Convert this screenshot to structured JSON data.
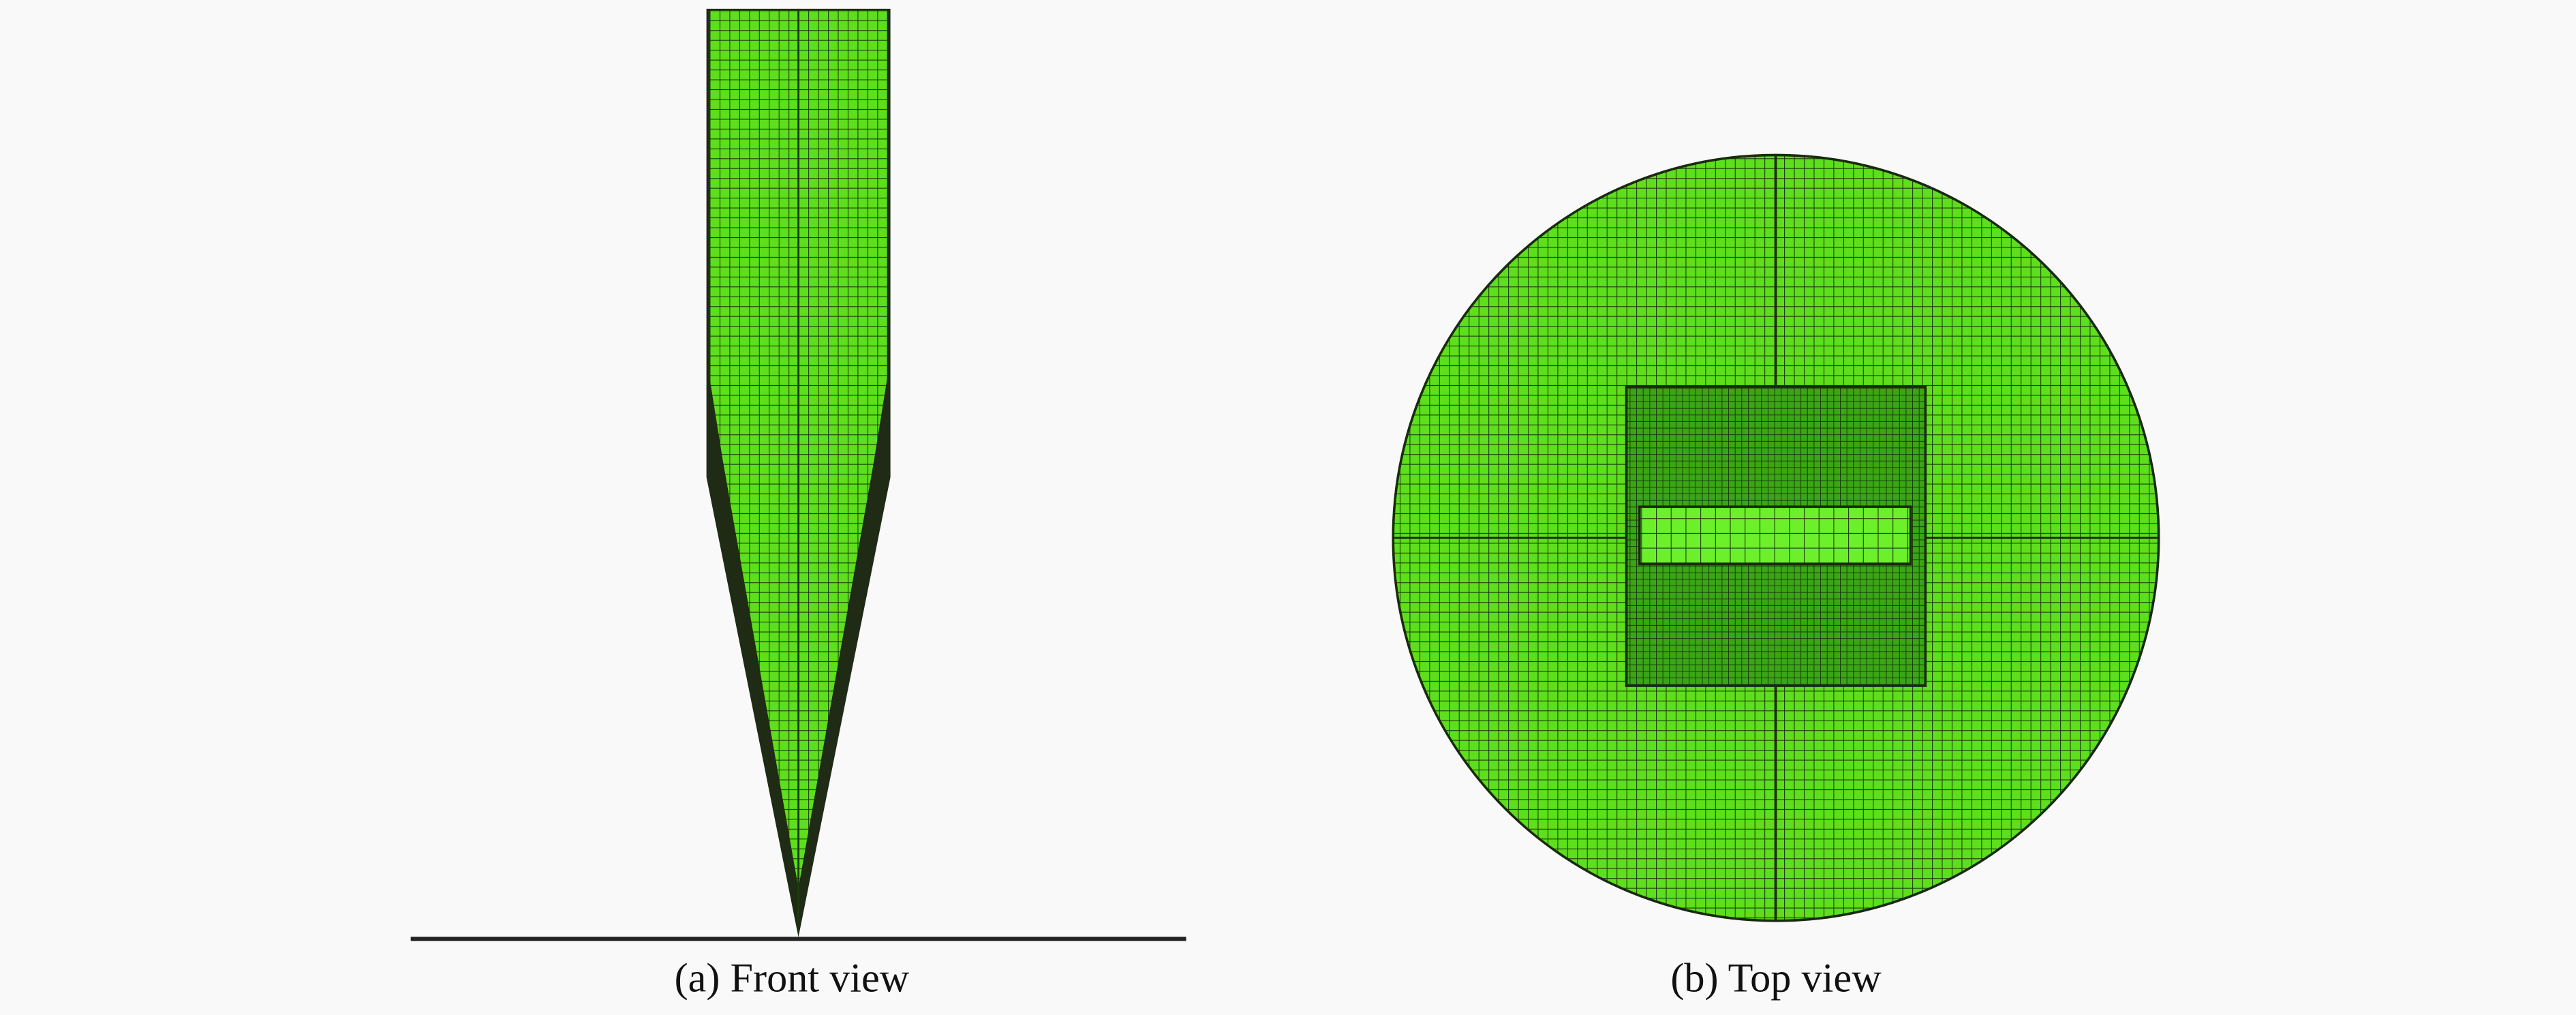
{
  "panels": [
    {
      "caption": "(a) Front view"
    },
    {
      "caption": "(b) Top view"
    }
  ]
}
